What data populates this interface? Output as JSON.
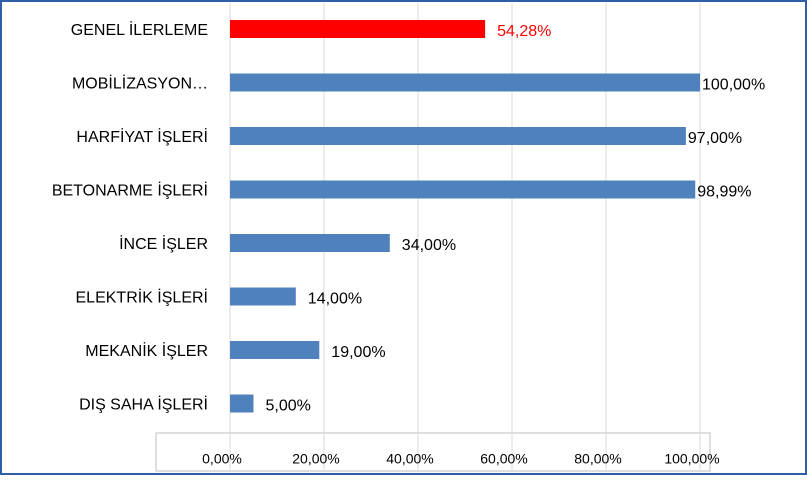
{
  "chart_data": {
    "type": "hbar",
    "categories": [
      "GENEL İLERLEME",
      "MOBİLİZASYON…",
      "HARFİYAT İŞLERİ",
      "BETONARME İŞLERİ",
      "İNCE İŞLER",
      "ELEKTRİK İŞLERİ",
      "MEKANİK İŞLER",
      "DIŞ SAHA İŞLERİ"
    ],
    "values": [
      54.28,
      100,
      97,
      98.99,
      34,
      14,
      19,
      5
    ],
    "value_labels": [
      "54,28%",
      "100,00%",
      "97,00%",
      "98,99%",
      "34,00%",
      "14,00%",
      "19,00%",
      "5,00%"
    ],
    "colors": [
      "#ff0000",
      "#4f81bd",
      "#4f81bd",
      "#4f81bd",
      "#4f81bd",
      "#4f81bd",
      "#4f81bd",
      "#4f81bd"
    ],
    "value_label_colors": [
      "#ff0000",
      "#000000",
      "#000000",
      "#000000",
      "#000000",
      "#000000",
      "#000000",
      "#000000"
    ],
    "xlim": [
      0,
      100
    ],
    "xticks": [
      {
        "value": 0,
        "label": "0,00%"
      },
      {
        "value": 20,
        "label": "20,00%"
      },
      {
        "value": 40,
        "label": "40,00%"
      },
      {
        "value": 60,
        "label": "60,00%"
      },
      {
        "value": 80,
        "label": "80,00%"
      },
      {
        "value": 100,
        "label": "100,00%"
      }
    ],
    "grid": true
  }
}
